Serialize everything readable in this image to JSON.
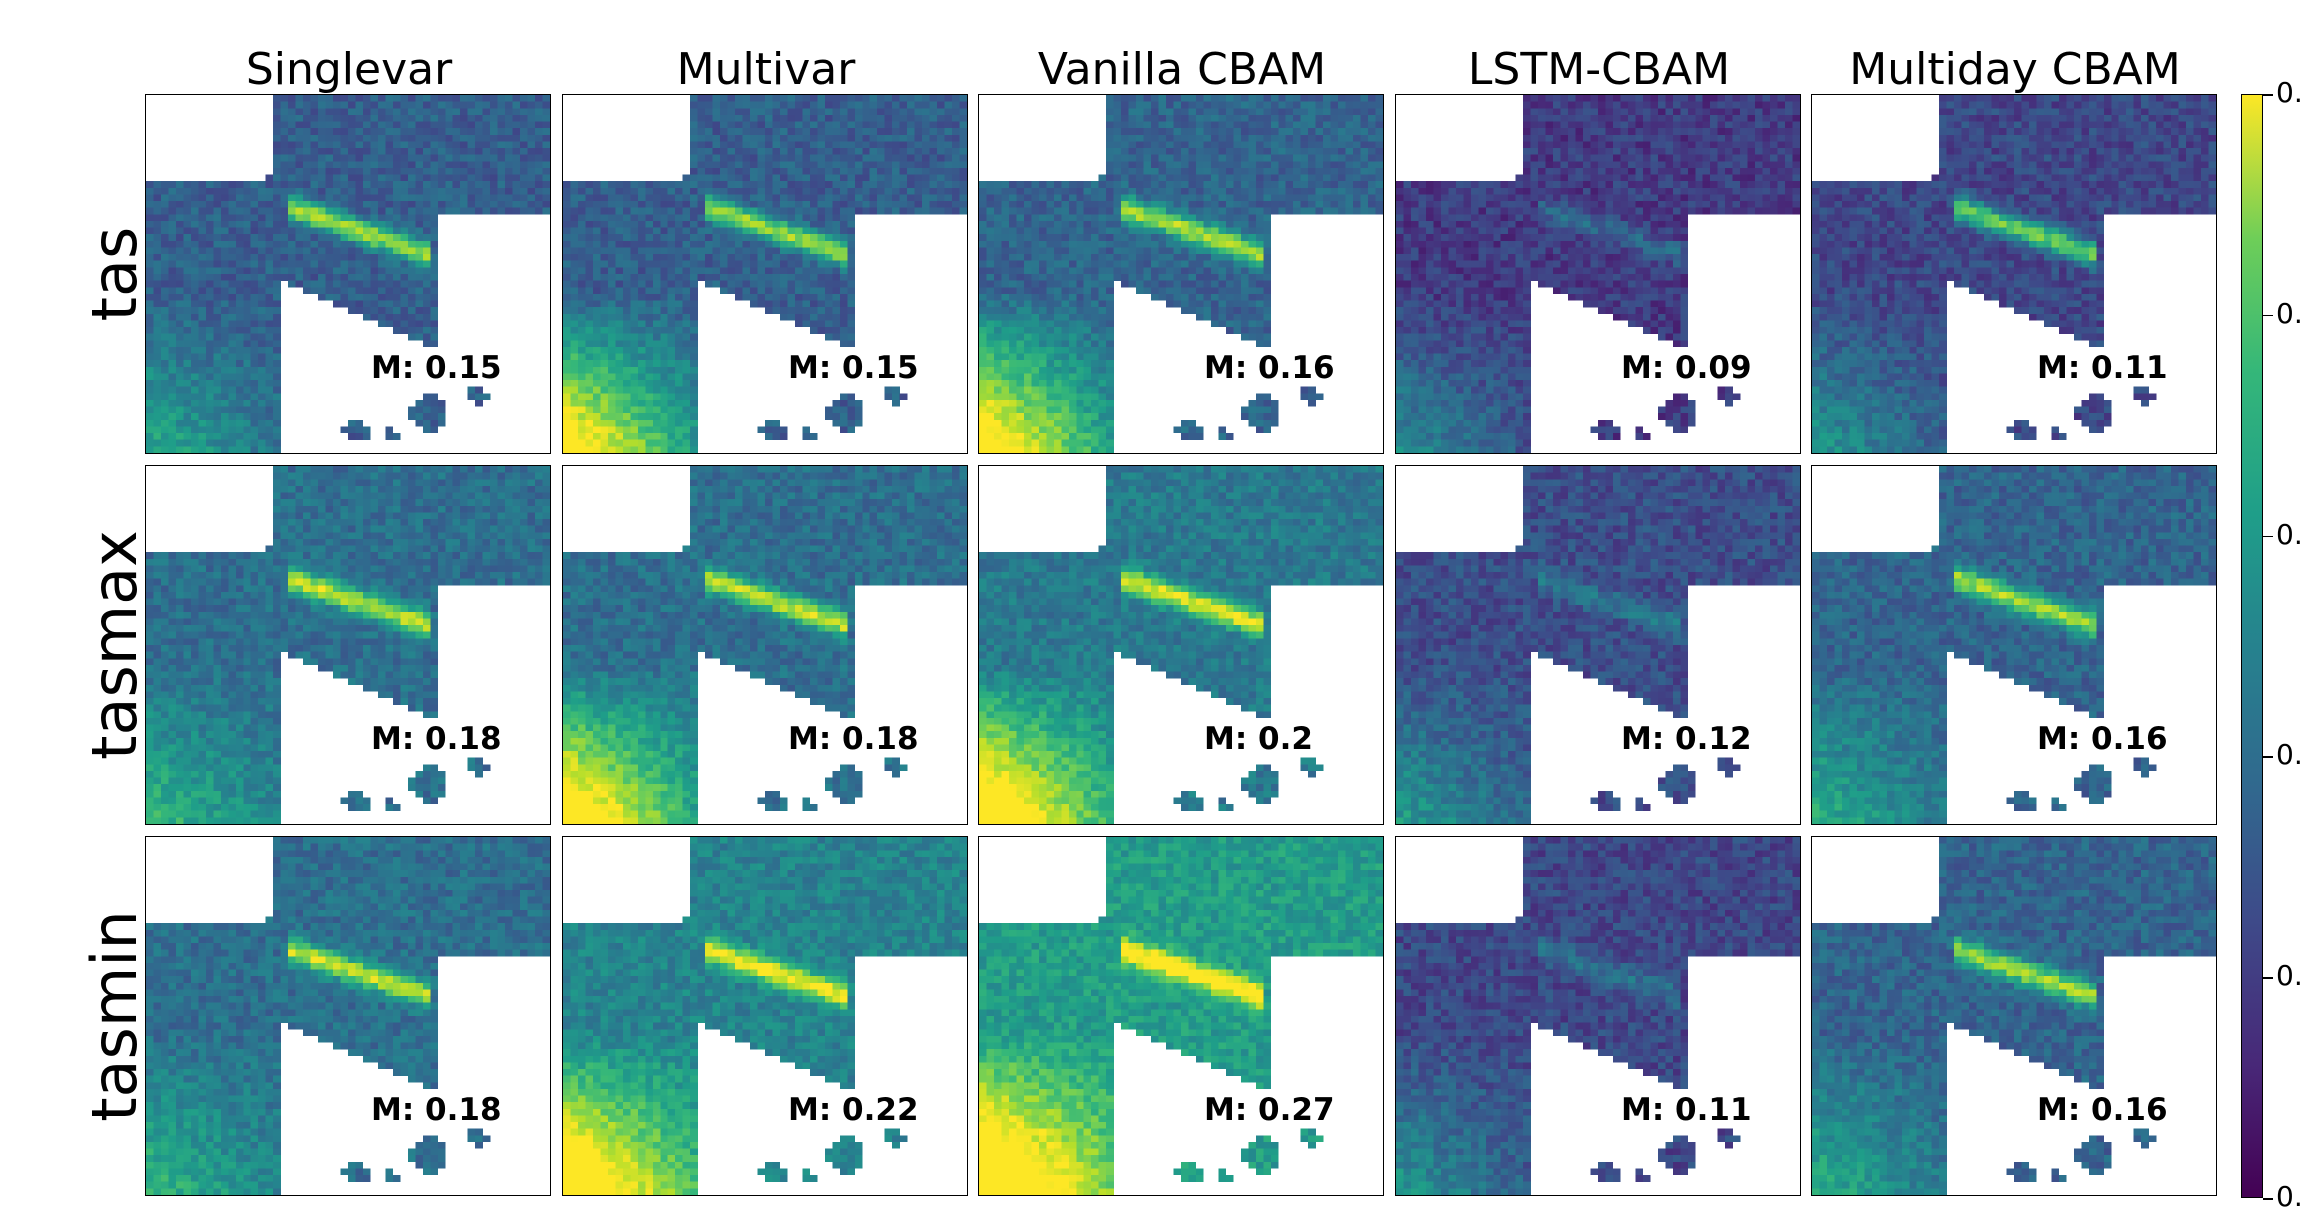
{
  "chart_data": {
    "type": "heatmap",
    "columns": [
      "Singlevar",
      "Multivar",
      "Vanilla CBAM",
      "LSTM-CBAM",
      "Multiday CBAM"
    ],
    "rows": [
      "tas",
      "tasmax",
      "tasmin"
    ],
    "metric_prefix": "M: ",
    "metrics": [
      [
        0.15,
        0.15,
        0.16,
        0.09,
        0.11
      ],
      [
        0.18,
        0.18,
        0.2,
        0.12,
        0.16
      ],
      [
        0.18,
        0.22,
        0.27,
        0.11,
        0.16
      ]
    ],
    "colormap": "viridis",
    "colorbar_tick_labels": [
      "0.",
      "0.",
      "0.",
      "0.",
      "0.",
      "0."
    ],
    "colors": {
      "viridis_low": "#440154",
      "viridis_high": "#fde725",
      "land_mask": "#ffffff"
    }
  }
}
